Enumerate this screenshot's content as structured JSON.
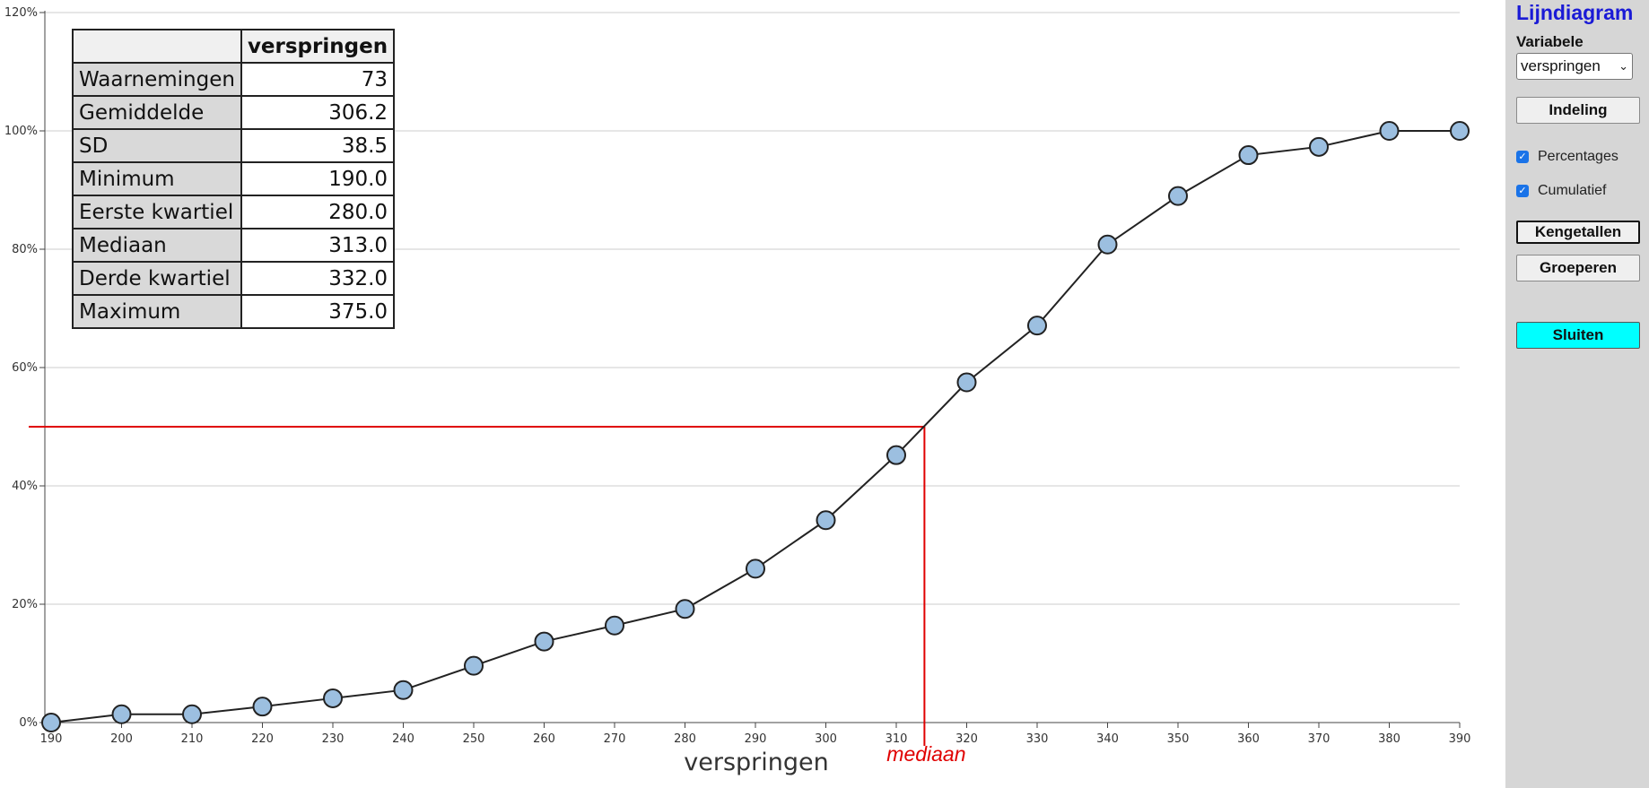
{
  "sidebar": {
    "title": "Lijndiagram",
    "variable_label": "Variabele",
    "variable_value": "verspringen",
    "buttons": {
      "indeling": "Indeling",
      "kengetallen": "Kengetallen",
      "groeperen": "Groeperen",
      "sluiten": "Sluiten"
    },
    "checkboxes": {
      "percentages": {
        "label": "Percentages",
        "checked": true
      },
      "cumulatief": {
        "label": "Cumulatief",
        "checked": true
      }
    },
    "colors": {
      "title": "#1a1ad6",
      "sluiten_bg": "#00ffff",
      "panel_bg": "#d6d6d6"
    }
  },
  "stats": {
    "column_header": "verspringen",
    "rows": [
      {
        "label": "Waarnemingen",
        "value": "73"
      },
      {
        "label": "Gemiddelde",
        "value": "306.2"
      },
      {
        "label": "SD",
        "value": "38.5"
      },
      {
        "label": "Minimum",
        "value": "190.0"
      },
      {
        "label": "Eerste kwartiel",
        "value": "280.0"
      },
      {
        "label": "Mediaan",
        "value": "313.0"
      },
      {
        "label": "Derde kwartiel",
        "value": "332.0"
      },
      {
        "label": "Maximum",
        "value": "375.0"
      }
    ]
  },
  "chart_data": {
    "type": "line",
    "title": "",
    "xlabel": "verspringen",
    "ylabel": "",
    "x": [
      190,
      200,
      210,
      220,
      230,
      240,
      250,
      260,
      270,
      280,
      290,
      300,
      310,
      320,
      330,
      340,
      350,
      360,
      370,
      380,
      390
    ],
    "series": [
      {
        "values": [
          0,
          1.4,
          1.4,
          2.7,
          4.1,
          5.5,
          9.6,
          13.7,
          16.4,
          19.2,
          26.0,
          34.2,
          45.2,
          57.5,
          67.1,
          80.8,
          89.0,
          95.9,
          97.3,
          100,
          100
        ]
      }
    ],
    "xlim": [
      190,
      390
    ],
    "ylim": [
      0,
      120
    ],
    "xticks": [
      190,
      200,
      210,
      220,
      230,
      240,
      250,
      260,
      270,
      280,
      290,
      300,
      310,
      320,
      330,
      340,
      350,
      360,
      370,
      380,
      390
    ],
    "yticks": [
      "0%",
      "20%",
      "40%",
      "60%",
      "80%",
      "100%",
      "120%"
    ],
    "grid": true,
    "median_line": {
      "x": 314,
      "y": 50,
      "label": "mediaan"
    },
    "colors": {
      "line": "#222222",
      "marker_fill": "#9cbfe0",
      "marker_stroke": "#222222",
      "median": "#e00000",
      "grid": "#cccccc"
    }
  }
}
